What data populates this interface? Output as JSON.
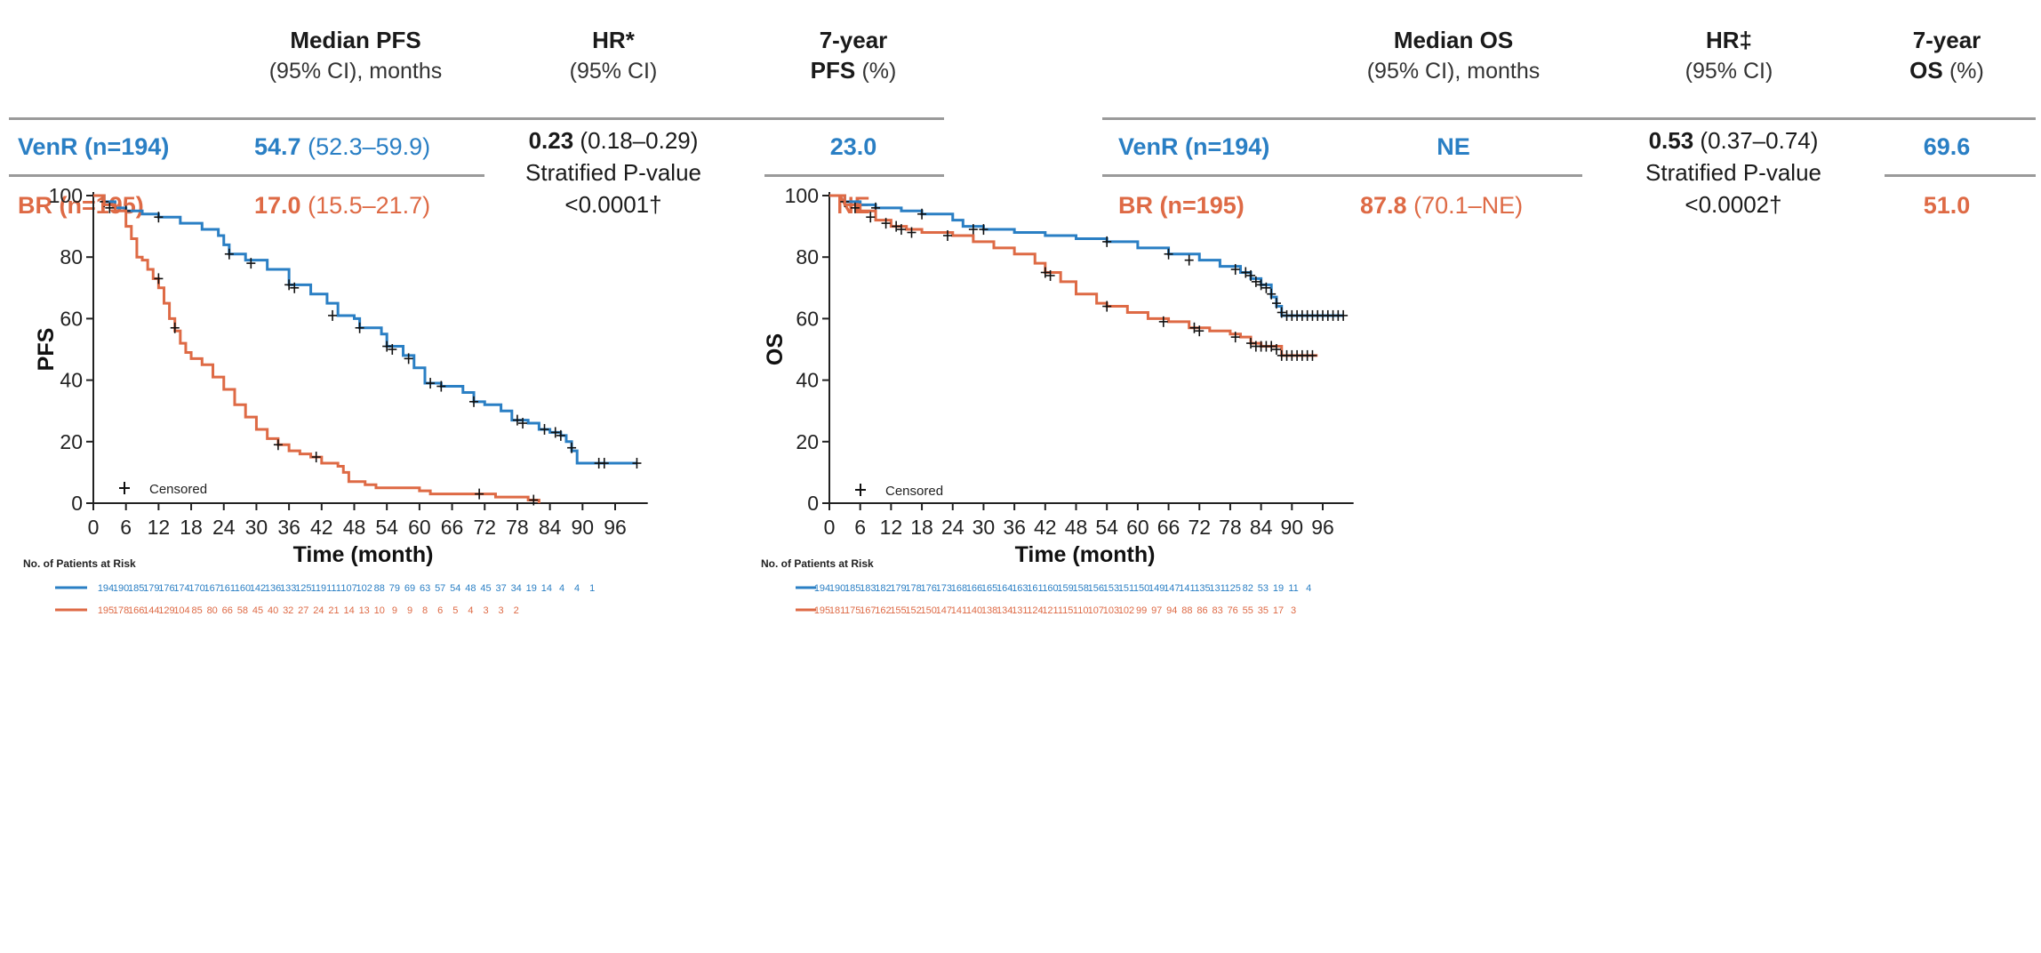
{
  "panels": [
    {
      "id": "pfs",
      "table": {
        "col_median": {
          "title": "Median PFS",
          "sub": "(95% CI), months"
        },
        "col_hr": {
          "title": "HR*",
          "sub": "(95% CI)"
        },
        "col_rate": {
          "title": "7-year",
          "title2": "PFS",
          "sub2": "(%)"
        },
        "rows": [
          {
            "name": "VenR (n=194)",
            "median": "54.7",
            "ci": "(52.3–59.9)",
            "rate": "23.0"
          },
          {
            "name": "BR (n=195)",
            "median": "17.0",
            "ci": "(15.5–21.7)",
            "rate": "NE"
          }
        ],
        "hr_value": "0.23",
        "hr_ci": "(0.18–0.29)",
        "hr_p_label": "Stratified P-value",
        "hr_p": "<0.0001†"
      }
    },
    {
      "id": "os",
      "table": {
        "col_median": {
          "title": "Median OS",
          "sub": "(95% CI), months"
        },
        "col_hr": {
          "title": "HR‡",
          "sub": "(95% CI)"
        },
        "col_rate": {
          "title": "7-year",
          "title2": "OS",
          "sub2": "(%)"
        },
        "rows": [
          {
            "name": "VenR (n=194)",
            "median": "NE",
            "ci": "",
            "rate": "69.6"
          },
          {
            "name": "BR (n=195)",
            "median": "87.8",
            "ci": "(70.1–NE)",
            "rate": "51.0"
          }
        ],
        "hr_value": "0.53",
        "hr_ci": "(0.37–0.74)",
        "hr_p_label": "Stratified P-value",
        "hr_p": "<0.0002†"
      }
    }
  ],
  "colors": {
    "venr": "#2a7fc4",
    "br": "#de6a45",
    "axis": "#222222",
    "rule": "#9a9a9a"
  },
  "chart_data": [
    {
      "type": "line",
      "title": "",
      "xlabel": "Time (month)",
      "ylabel": "PFS",
      "xlim": [
        0,
        102
      ],
      "ylim": [
        0,
        100
      ],
      "xticks": [
        0,
        6,
        12,
        18,
        24,
        30,
        36,
        42,
        48,
        54,
        60,
        66,
        72,
        78,
        84,
        90,
        96
      ],
      "yticks": [
        0,
        20,
        40,
        60,
        80,
        100
      ],
      "legend": "Censored",
      "risk_title": "No. of Patients at Risk",
      "series": [
        {
          "key": "venr",
          "points": [
            [
              0,
              100
            ],
            [
              2,
              98
            ],
            [
              4,
              96
            ],
            [
              6,
              95
            ],
            [
              9,
              94
            ],
            [
              12,
              93
            ],
            [
              16,
              91
            ],
            [
              20,
              89
            ],
            [
              23,
              87
            ],
            [
              24,
              84
            ],
            [
              25,
              81
            ],
            [
              28,
              79
            ],
            [
              32,
              76
            ],
            [
              36,
              71
            ],
            [
              40,
              68
            ],
            [
              43,
              65
            ],
            [
              45,
              61
            ],
            [
              48,
              60
            ],
            [
              49,
              57
            ],
            [
              53,
              55
            ],
            [
              54,
              51
            ],
            [
              57,
              48
            ],
            [
              59,
              44
            ],
            [
              61,
              39
            ],
            [
              64,
              38
            ],
            [
              68,
              36
            ],
            [
              70,
              33
            ],
            [
              72,
              32
            ],
            [
              75,
              30
            ],
            [
              77,
              27
            ],
            [
              80,
              26
            ],
            [
              82,
              24
            ],
            [
              84,
              23
            ],
            [
              86,
              22
            ],
            [
              87,
              20
            ],
            [
              88,
              17
            ],
            [
              89,
              13
            ],
            [
              100,
              13
            ]
          ],
          "censored": [
            [
              2,
              98
            ],
            [
              6,
              95
            ],
            [
              12,
              93
            ],
            [
              25,
              81
            ],
            [
              29,
              78
            ],
            [
              36,
              71
            ],
            [
              37,
              70
            ],
            [
              44,
              61
            ],
            [
              49,
              57
            ],
            [
              54,
              51
            ],
            [
              55,
              50
            ],
            [
              58,
              47
            ],
            [
              62,
              39
            ],
            [
              64,
              38
            ],
            [
              70,
              33
            ],
            [
              78,
              27
            ],
            [
              79,
              26
            ],
            [
              83,
              24
            ],
            [
              85,
              23
            ],
            [
              86,
              22
            ],
            [
              88,
              18
            ],
            [
              93,
              13
            ],
            [
              94,
              13
            ],
            [
              100,
              13
            ]
          ],
          "risk": [
            "194",
            "190",
            "185",
            "179",
            "176",
            "174",
            "170",
            "167",
            "161",
            "160",
            "142",
            "136",
            "133",
            "125",
            "119",
            "111",
            "107",
            "102",
            "88",
            "79",
            "69",
            "63",
            "57",
            "54",
            "48",
            "45",
            "37",
            "34",
            "19",
            "14",
            "4",
            "4",
            "1"
          ]
        },
        {
          "key": "br",
          "points": [
            [
              0,
              100
            ],
            [
              2,
              97
            ],
            [
              4,
              95
            ],
            [
              6,
              90
            ],
            [
              7,
              86
            ],
            [
              8,
              80
            ],
            [
              9,
              79
            ],
            [
              10,
              76
            ],
            [
              11,
              73
            ],
            [
              12,
              70
            ],
            [
              13,
              65
            ],
            [
              14,
              60
            ],
            [
              15,
              56
            ],
            [
              16,
              52
            ],
            [
              17,
              49
            ],
            [
              18,
              47
            ],
            [
              20,
              45
            ],
            [
              22,
              41
            ],
            [
              24,
              37
            ],
            [
              26,
              32
            ],
            [
              28,
              28
            ],
            [
              30,
              24
            ],
            [
              32,
              21
            ],
            [
              34,
              19
            ],
            [
              36,
              17
            ],
            [
              38,
              16
            ],
            [
              40,
              15
            ],
            [
              42,
              13
            ],
            [
              45,
              12
            ],
            [
              46,
              10
            ],
            [
              47,
              7
            ],
            [
              50,
              6
            ],
            [
              52,
              5
            ],
            [
              56,
              5
            ],
            [
              60,
              4
            ],
            [
              62,
              3
            ],
            [
              66,
              3
            ],
            [
              70,
              3
            ],
            [
              74,
              2
            ],
            [
              80,
              1
            ],
            [
              82,
              0
            ]
          ],
          "censored": [
            [
              3,
              96
            ],
            [
              12,
              73
            ],
            [
              15,
              57
            ],
            [
              34,
              19
            ],
            [
              41,
              15
            ],
            [
              71,
              3
            ],
            [
              81,
              1
            ]
          ],
          "risk": [
            "195",
            "178",
            "166",
            "144",
            "129",
            "104",
            "85",
            "80",
            "66",
            "58",
            "45",
            "40",
            "32",
            "27",
            "24",
            "21",
            "14",
            "13",
            "10",
            "9",
            "9",
            "8",
            "6",
            "5",
            "4",
            "3",
            "3",
            "2"
          ]
        }
      ]
    },
    {
      "type": "line",
      "title": "",
      "xlabel": "Time (month)",
      "ylabel": "OS",
      "xlim": [
        0,
        102
      ],
      "ylim": [
        0,
        100
      ],
      "xticks": [
        0,
        6,
        12,
        18,
        24,
        30,
        36,
        42,
        48,
        54,
        60,
        66,
        72,
        78,
        84,
        90,
        96
      ],
      "yticks": [
        0,
        20,
        40,
        60,
        80,
        100
      ],
      "legend": "Censored",
      "risk_title": "No. of Patients at Risk",
      "series": [
        {
          "key": "venr",
          "points": [
            [
              0,
              100
            ],
            [
              3,
              98
            ],
            [
              6,
              97
            ],
            [
              9,
              96
            ],
            [
              14,
              95
            ],
            [
              18,
              94
            ],
            [
              24,
              92
            ],
            [
              26,
              90
            ],
            [
              30,
              89
            ],
            [
              36,
              88
            ],
            [
              42,
              87
            ],
            [
              48,
              86
            ],
            [
              54,
              85
            ],
            [
              60,
              83
            ],
            [
              66,
              81
            ],
            [
              72,
              79
            ],
            [
              76,
              77
            ],
            [
              80,
              75
            ],
            [
              82,
              73
            ],
            [
              84,
              71
            ],
            [
              86,
              67
            ],
            [
              87,
              64
            ],
            [
              88,
              61
            ],
            [
              100,
              61
            ]
          ],
          "censored": [
            [
              3,
              98
            ],
            [
              9,
              96
            ],
            [
              18,
              94
            ],
            [
              28,
              89
            ],
            [
              30,
              89
            ],
            [
              54,
              85
            ],
            [
              66,
              81
            ],
            [
              70,
              79
            ],
            [
              79,
              76
            ],
            [
              81,
              75
            ],
            [
              82,
              74
            ],
            [
              83,
              72
            ],
            [
              84,
              71
            ],
            [
              85,
              70
            ],
            [
              86,
              68
            ],
            [
              87,
              65
            ],
            [
              88,
              62
            ],
            [
              89,
              61
            ],
            [
              90,
              61
            ],
            [
              91,
              61
            ],
            [
              92,
              61
            ],
            [
              93,
              61
            ],
            [
              94,
              61
            ],
            [
              95,
              61
            ],
            [
              96,
              61
            ],
            [
              97,
              61
            ],
            [
              98,
              61
            ],
            [
              99,
              61
            ],
            [
              100,
              61
            ]
          ],
          "risk": [
            "194",
            "190",
            "185",
            "183",
            "182",
            "179",
            "178",
            "176",
            "173",
            "168",
            "166",
            "165",
            "164",
            "163",
            "161",
            "160",
            "159",
            "158",
            "156",
            "153",
            "151",
            "150",
            "149",
            "147",
            "141",
            "135",
            "131",
            "125",
            "82",
            "53",
            "19",
            "11",
            "4"
          ]
        },
        {
          "key": "br",
          "points": [
            [
              0,
              100
            ],
            [
              3,
              97
            ],
            [
              6,
              95
            ],
            [
              9,
              92
            ],
            [
              12,
              90
            ],
            [
              15,
              89
            ],
            [
              18,
              88
            ],
            [
              24,
              87
            ],
            [
              28,
              85
            ],
            [
              32,
              83
            ],
            [
              36,
              81
            ],
            [
              40,
              78
            ],
            [
              42,
              75
            ],
            [
              45,
              72
            ],
            [
              48,
              68
            ],
            [
              52,
              65
            ],
            [
              54,
              64
            ],
            [
              58,
              62
            ],
            [
              62,
              60
            ],
            [
              66,
              59
            ],
            [
              70,
              57
            ],
            [
              74,
              56
            ],
            [
              78,
              55
            ],
            [
              80,
              54
            ],
            [
              82,
              52
            ],
            [
              84,
              51
            ],
            [
              87,
              51
            ],
            [
              88,
              48
            ],
            [
              95,
              48
            ]
          ],
          "censored": [
            [
              5,
              96
            ],
            [
              8,
              93
            ],
            [
              11,
              91
            ],
            [
              13,
              90
            ],
            [
              14,
              89
            ],
            [
              16,
              88
            ],
            [
              23,
              87
            ],
            [
              42,
              75
            ],
            [
              43,
              74
            ],
            [
              54,
              64
            ],
            [
              65,
              59
            ],
            [
              71,
              57
            ],
            [
              72,
              56
            ],
            [
              79,
              54
            ],
            [
              82,
              52
            ],
            [
              83,
              51
            ],
            [
              84,
              51
            ],
            [
              85,
              51
            ],
            [
              86,
              51
            ],
            [
              87,
              50
            ],
            [
              88,
              48
            ],
            [
              89,
              48
            ],
            [
              90,
              48
            ],
            [
              91,
              48
            ],
            [
              92,
              48
            ],
            [
              93,
              48
            ],
            [
              94,
              48
            ]
          ],
          "risk": [
            "195",
            "181",
            "175",
            "167",
            "162",
            "155",
            "152",
            "150",
            "147",
            "141",
            "140",
            "138",
            "134",
            "131",
            "124",
            "121",
            "115",
            "110",
            "107",
            "103",
            "102",
            "99",
            "97",
            "94",
            "88",
            "86",
            "83",
            "76",
            "55",
            "35",
            "17",
            "3"
          ]
        }
      ]
    }
  ]
}
